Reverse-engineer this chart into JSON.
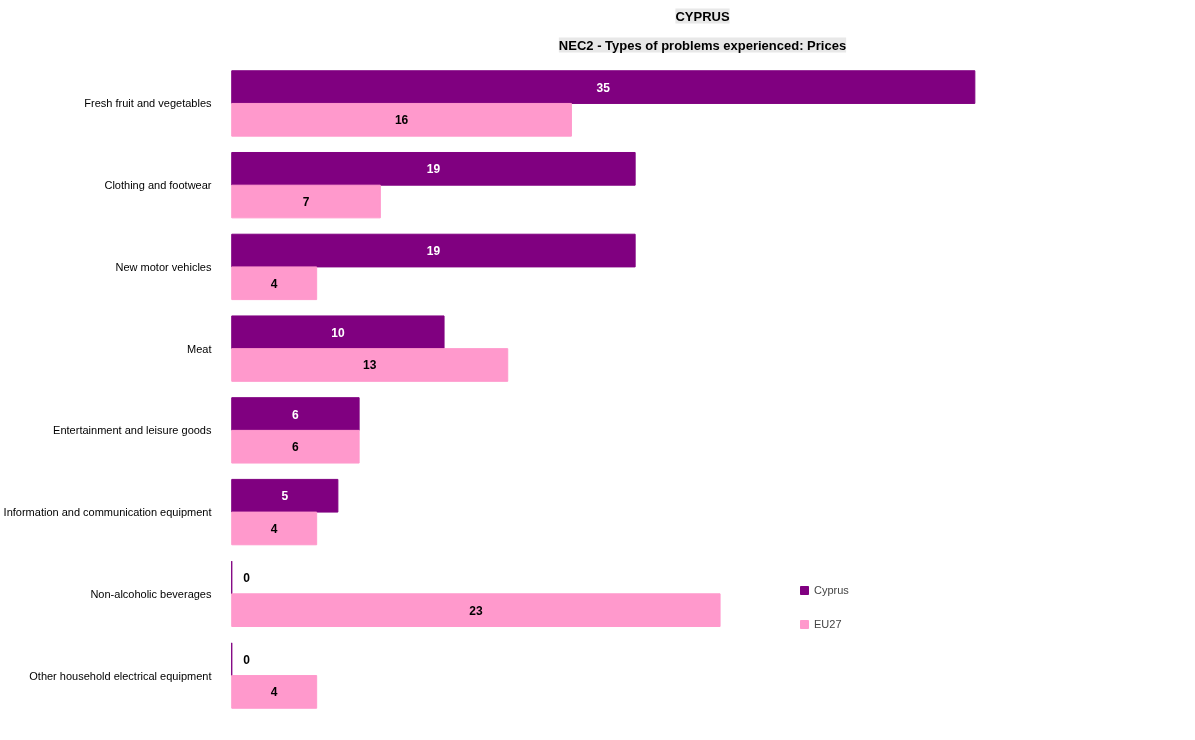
{
  "chart_data": {
    "type": "bar",
    "orientation": "horizontal",
    "title": "CYPRUS",
    "subtitle": "NEC2 - Types of problems experienced: Prices",
    "categories": [
      "Fresh fruit and vegetables",
      "Clothing and footwear",
      "New motor vehicles",
      "Meat",
      "Entertainment and leisure goods",
      "Information and communication equipment",
      "Non-alcoholic beverages",
      "Other household electrical equipment"
    ],
    "series": [
      {
        "name": "Cyprus",
        "color": "#800080",
        "values": [
          35,
          19,
          19,
          10,
          6,
          5,
          0,
          0
        ]
      },
      {
        "name": "EU27",
        "color": "#ff99cc",
        "values": [
          16,
          7,
          4,
          13,
          6,
          4,
          23,
          4
        ]
      }
    ],
    "data_labels": true,
    "legend": "right",
    "grid": false
  }
}
